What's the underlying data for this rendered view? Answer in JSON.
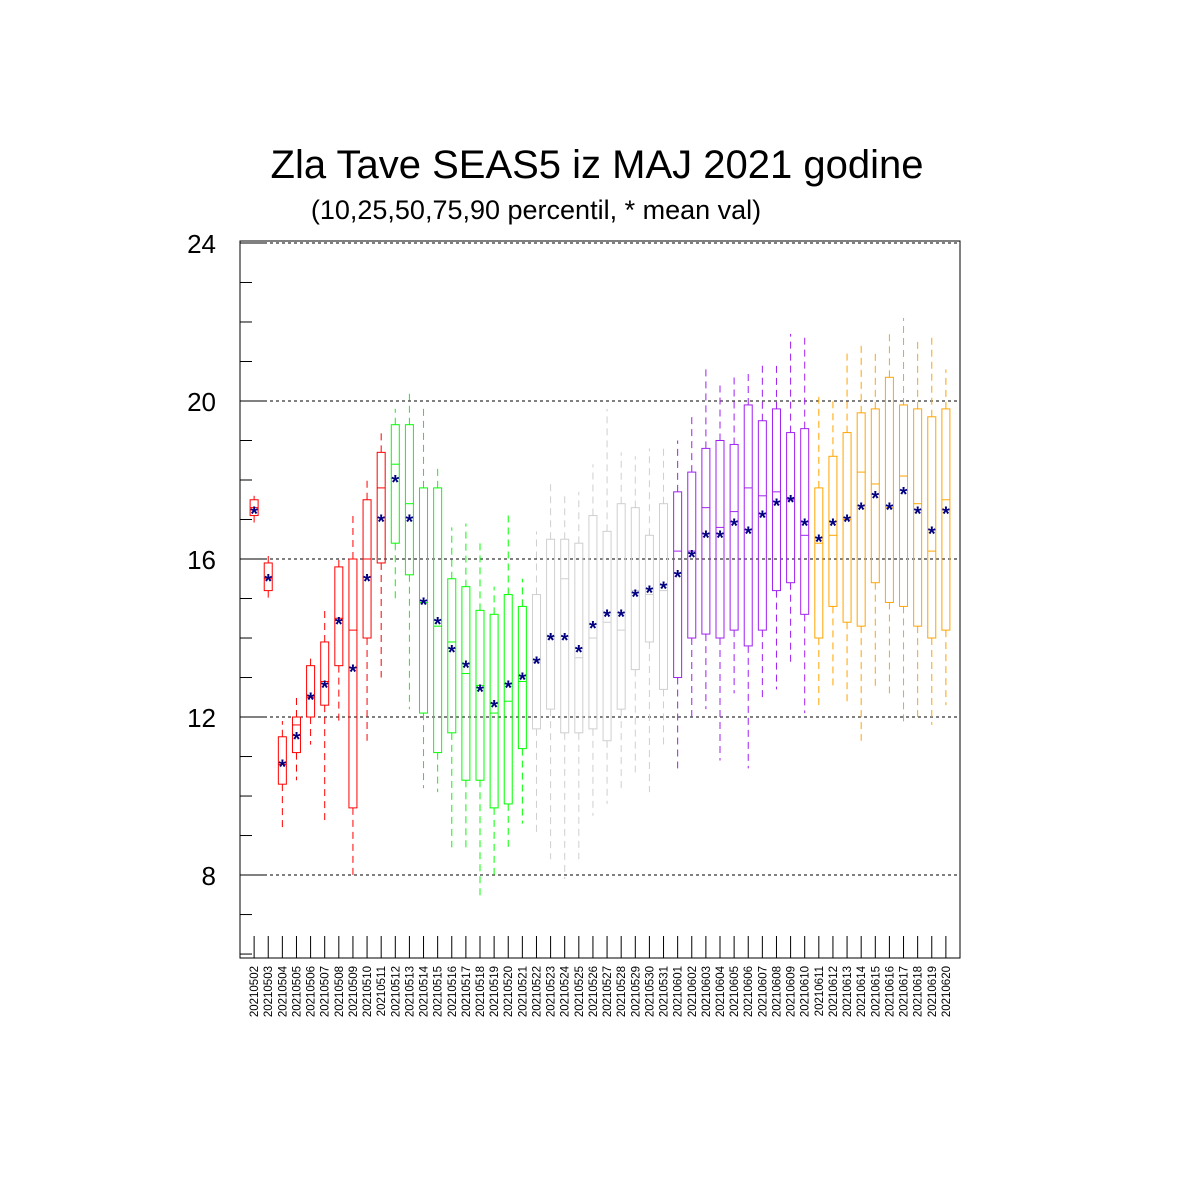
{
  "chart_data": {
    "type": "box",
    "title": "Zla Tave SEAS5 iz MAJ 2021 godine",
    "subtitle": "(10,25,50,75,90 percentil, * mean val)",
    "xlabel": "",
    "ylabel": "",
    "ylim": [
      5.9,
      24.05
    ],
    "yticks": [
      8,
      12,
      16,
      20,
      24
    ],
    "grid": "dashed horizontal lines at major y ticks",
    "mean_marker": "*",
    "categories": [
      "20210502",
      "20210503",
      "20210504",
      "20210505",
      "20210506",
      "20210507",
      "20210508",
      "20210509",
      "20210510",
      "20210511",
      "20210512",
      "20210513",
      "20210514",
      "20210515",
      "20210516",
      "20210517",
      "20210518",
      "20210519",
      "20210520",
      "20210521",
      "20210522",
      "20210523",
      "20210524",
      "20210525",
      "20210526",
      "20210527",
      "20210528",
      "20210529",
      "20210530",
      "20210531",
      "20210601",
      "20210602",
      "20210603",
      "20210604",
      "20210605",
      "20210606",
      "20210607",
      "20210608",
      "20210609",
      "20210610",
      "20210611",
      "20210612",
      "20210613",
      "20210614",
      "20210615",
      "20210616",
      "20210617",
      "20210618",
      "20210619",
      "20210620"
    ],
    "colors": {
      "red": "#ff0000",
      "green": "#00ff00",
      "gray": "#cfcfcf",
      "purple": "#a020f0",
      "orange": "#ffa500",
      "mean": "#000080"
    },
    "boxes": [
      {
        "p10": 16.9,
        "p25": 17.1,
        "p50": 17.3,
        "p75": 17.5,
        "p90": 17.6,
        "mean": 17.2,
        "color": "red"
      },
      {
        "p10": 14.9,
        "p25": 15.2,
        "p50": 15.5,
        "p75": 15.9,
        "p90": 16.1,
        "mean": 15.5,
        "color": "red"
      },
      {
        "p10": 9.2,
        "p25": 10.3,
        "p50": 10.8,
        "p75": 11.5,
        "p90": 11.9,
        "mean": 10.8,
        "color": "red"
      },
      {
        "p10": 10.4,
        "p25": 11.1,
        "p50": 11.8,
        "p75": 12.0,
        "p90": 12.5,
        "mean": 11.5,
        "color": "red"
      },
      {
        "p10": 11.3,
        "p25": 12.0,
        "p50": 12.5,
        "p75": 13.3,
        "p90": 13.5,
        "mean": 12.5,
        "color": "red"
      },
      {
        "p10": 9.3,
        "p25": 12.3,
        "p50": 12.9,
        "p75": 13.9,
        "p90": 14.8,
        "mean": 12.8,
        "color": "red"
      },
      {
        "p10": 11.8,
        "p25": 13.3,
        "p50": 14.5,
        "p75": 15.8,
        "p90": 16.0,
        "mean": 14.4,
        "color": "red"
      },
      {
        "p10": 8.0,
        "p25": 9.7,
        "p50": 14.2,
        "p75": 16.0,
        "p90": 17.2,
        "mean": 13.2,
        "color": "red"
      },
      {
        "p10": 11.4,
        "p25": 14.0,
        "p50": 16.0,
        "p75": 17.5,
        "p90": 18.0,
        "mean": 15.5,
        "color": "red"
      },
      {
        "p10": 13.0,
        "p25": 15.9,
        "p50": 17.8,
        "p75": 18.7,
        "p90": 19.2,
        "mean": 17.0,
        "color": "red"
      },
      {
        "p10": 15.0,
        "p25": 16.4,
        "p50": 18.4,
        "p75": 19.4,
        "p90": 19.8,
        "mean": 18.0,
        "color": "green"
      },
      {
        "p10": 12.2,
        "p25": 15.6,
        "p50": 17.4,
        "p75": 19.4,
        "p90": 20.2,
        "mean": 17.0,
        "color": "green"
      },
      {
        "p10": 10.2,
        "p25": 12.1,
        "p50": 14.9,
        "p75": 17.8,
        "p90": 19.9,
        "mean": 14.9,
        "color": "green"
      },
      {
        "p10": 10.1,
        "p25": 11.1,
        "p50": 14.3,
        "p75": 17.8,
        "p90": 18.4,
        "mean": 14.4,
        "color": "green"
      },
      {
        "p10": 8.7,
        "p25": 11.6,
        "p50": 13.9,
        "p75": 15.5,
        "p90": 16.8,
        "mean": 13.7,
        "color": "green"
      },
      {
        "p10": 8.7,
        "p25": 10.4,
        "p50": 13.1,
        "p75": 15.3,
        "p90": 16.9,
        "mean": 13.3,
        "color": "green"
      },
      {
        "p10": 7.4,
        "p25": 10.4,
        "p50": 12.8,
        "p75": 14.7,
        "p90": 16.4,
        "mean": 12.7,
        "color": "green"
      },
      {
        "p10": 7.9,
        "p25": 9.7,
        "p50": 12.1,
        "p75": 14.6,
        "p90": 15.3,
        "mean": 12.3,
        "color": "green"
      },
      {
        "p10": 8.6,
        "p25": 9.8,
        "p50": 12.4,
        "p75": 15.1,
        "p90": 17.1,
        "mean": 12.8,
        "color": "green"
      },
      {
        "p10": 9.3,
        "p25": 11.2,
        "p50": 12.9,
        "p75": 14.8,
        "p90": 15.5,
        "mean": 13.0,
        "color": "green"
      },
      {
        "p10": 9.0,
        "p25": 11.7,
        "p50": 13.4,
        "p75": 15.1,
        "p90": 16.7,
        "mean": 13.4,
        "color": "gray"
      },
      {
        "p10": 8.4,
        "p25": 12.2,
        "p50": 14.0,
        "p75": 16.5,
        "p90": 17.9,
        "mean": 14.0,
        "color": "gray"
      },
      {
        "p10": 7.9,
        "p25": 11.6,
        "p50": 15.5,
        "p75": 16.5,
        "p90": 17.6,
        "mean": 14.0,
        "color": "gray"
      },
      {
        "p10": 8.4,
        "p25": 11.6,
        "p50": 13.5,
        "p75": 16.4,
        "p90": 17.7,
        "mean": 13.7,
        "color": "gray"
      },
      {
        "p10": 9.5,
        "p25": 11.7,
        "p50": 14.0,
        "p75": 17.1,
        "p90": 18.4,
        "mean": 14.3,
        "color": "gray"
      },
      {
        "p10": 9.8,
        "p25": 11.4,
        "p50": 14.4,
        "p75": 16.7,
        "p90": 19.8,
        "mean": 14.6,
        "color": "gray"
      },
      {
        "p10": 10.1,
        "p25": 12.2,
        "p50": 14.2,
        "p75": 17.4,
        "p90": 18.7,
        "mean": 14.6,
        "color": "gray"
      },
      {
        "p10": 10.6,
        "p25": 13.2,
        "p50": 15.2,
        "p75": 17.3,
        "p90": 18.6,
        "mean": 15.1,
        "color": "gray"
      },
      {
        "p10": 10.1,
        "p25": 13.9,
        "p50": 15.1,
        "p75": 16.6,
        "p90": 18.8,
        "mean": 15.2,
        "color": "gray"
      },
      {
        "p10": 11.3,
        "p25": 12.7,
        "p50": 15.2,
        "p75": 17.4,
        "p90": 18.9,
        "mean": 15.3,
        "color": "gray"
      },
      {
        "p10": 10.7,
        "p25": 13.0,
        "p50": 16.2,
        "p75": 17.7,
        "p90": 19.0,
        "mean": 15.6,
        "color": "purple"
      },
      {
        "p10": 12.0,
        "p25": 14.0,
        "p50": 16.2,
        "p75": 18.2,
        "p90": 19.7,
        "mean": 16.1,
        "color": "purple"
      },
      {
        "p10": 12.2,
        "p25": 14.1,
        "p50": 17.3,
        "p75": 18.8,
        "p90": 20.8,
        "mean": 16.6,
        "color": "purple"
      },
      {
        "p10": 10.9,
        "p25": 14.0,
        "p50": 16.8,
        "p75": 19.0,
        "p90": 20.5,
        "mean": 16.6,
        "color": "purple"
      },
      {
        "p10": 12.6,
        "p25": 14.2,
        "p50": 17.2,
        "p75": 18.9,
        "p90": 20.6,
        "mean": 16.9,
        "color": "purple"
      },
      {
        "p10": 10.7,
        "p25": 13.8,
        "p50": 17.8,
        "p75": 19.9,
        "p90": 20.8,
        "mean": 16.7,
        "color": "purple"
      },
      {
        "p10": 12.4,
        "p25": 14.2,
        "p50": 17.6,
        "p75": 19.5,
        "p90": 21.0,
        "mean": 17.1,
        "color": "purple"
      },
      {
        "p10": 12.7,
        "p25": 15.2,
        "p50": 17.7,
        "p75": 19.8,
        "p90": 21.0,
        "mean": 17.4,
        "color": "purple"
      },
      {
        "p10": 13.3,
        "p25": 15.4,
        "p50": 17.5,
        "p75": 19.2,
        "p90": 21.7,
        "mean": 17.5,
        "color": "purple"
      },
      {
        "p10": 12.1,
        "p25": 14.6,
        "p50": 16.6,
        "p75": 19.3,
        "p90": 21.6,
        "mean": 16.9,
        "color": "purple"
      },
      {
        "p10": 12.3,
        "p25": 14.0,
        "p50": 16.4,
        "p75": 17.8,
        "p90": 20.2,
        "mean": 16.5,
        "color": "orange"
      },
      {
        "p10": 12.8,
        "p25": 14.8,
        "p50": 16.6,
        "p75": 18.6,
        "p90": 20.0,
        "mean": 16.9,
        "color": "orange"
      },
      {
        "p10": 12.4,
        "p25": 14.4,
        "p50": 17.0,
        "p75": 19.2,
        "p90": 21.2,
        "mean": 17.0,
        "color": "orange"
      },
      {
        "p10": 11.4,
        "p25": 14.3,
        "p50": 18.2,
        "p75": 19.7,
        "p90": 21.5,
        "mean": 17.3,
        "color": "orange"
      },
      {
        "p10": 12.7,
        "p25": 15.4,
        "p50": 17.9,
        "p75": 19.8,
        "p90": 21.3,
        "mean": 17.6,
        "color": "orange"
      },
      {
        "p10": 12.6,
        "p25": 14.9,
        "p50": 17.3,
        "p75": 20.6,
        "p90": 21.8,
        "mean": 17.3,
        "color": "orange"
      },
      {
        "p10": 11.8,
        "p25": 14.8,
        "p50": 18.1,
        "p75": 19.9,
        "p90": 22.1,
        "mean": 17.7,
        "color": "orange"
      },
      {
        "p10": 12.0,
        "p25": 14.3,
        "p50": 17.4,
        "p75": 19.8,
        "p90": 21.5,
        "mean": 17.2,
        "color": "orange"
      },
      {
        "p10": 11.8,
        "p25": 14.0,
        "p50": 16.2,
        "p75": 19.6,
        "p90": 21.6,
        "mean": 16.7,
        "color": "orange"
      },
      {
        "p10": 12.3,
        "p25": 14.2,
        "p50": 17.5,
        "p75": 19.8,
        "p90": 20.8,
        "mean": 17.2,
        "color": "orange"
      }
    ]
  }
}
